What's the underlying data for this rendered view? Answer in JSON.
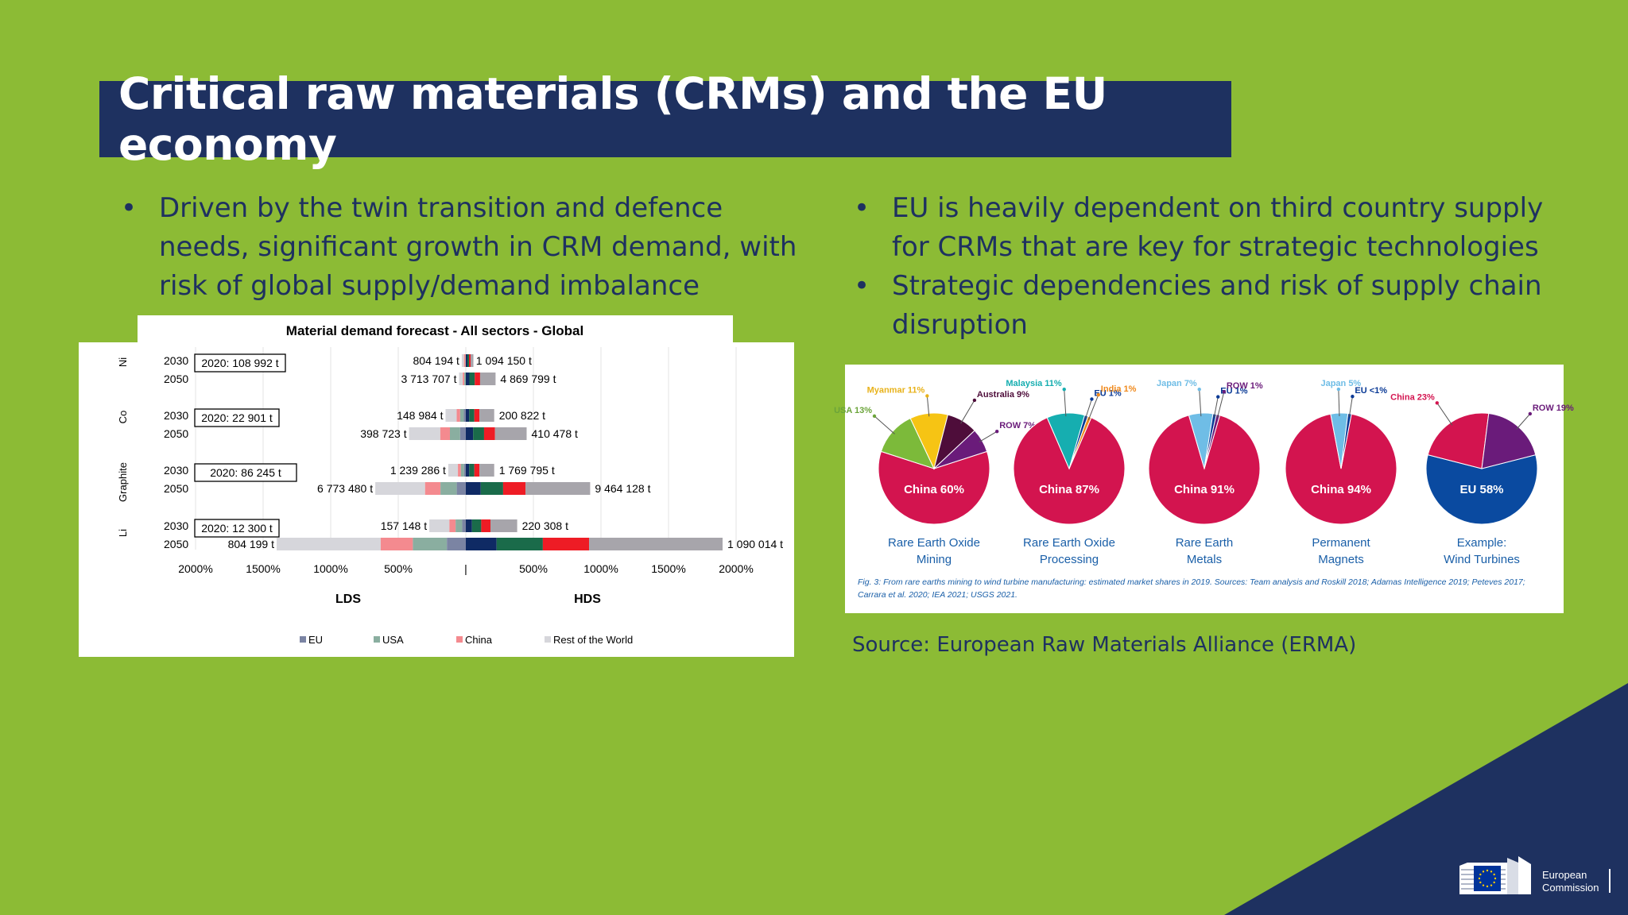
{
  "title": "Critical raw materials (CRMs) and the EU economy",
  "left_bullets": [
    "Driven by the twin transition and defence needs, significant growth in CRM demand, with risk of global supply/demand imbalance"
  ],
  "right_bullets": [
    "EU is heavily dependent on third country supply for CRMs that are key for strategic technologies",
    "Strategic dependencies and risk of supply chain disruption"
  ],
  "source": "Source: European Raw Materials Alliance (ERMA)",
  "logo": {
    "text_line1": "European",
    "text_line2": "Commission",
    "colors": {
      "eu_blue": "#003399",
      "eu_gold": "#ffcc00"
    }
  },
  "chart_data": [
    {
      "type": "bar",
      "title": "Material demand forecast - All sectors - Global",
      "xlabel_left": "LDS",
      "xlabel_right": "HDS",
      "x_ticks": [
        "2000%",
        "1500%",
        "1000%",
        "500%",
        "|",
        "500%",
        "1000%",
        "1500%",
        "2000%"
      ],
      "x_range": [
        -2000,
        2000
      ],
      "legend": [
        "EU",
        "USA",
        "China",
        "Rest of the World"
      ],
      "legend_placement": "bottom",
      "materials": [
        {
          "name": "Ni",
          "baseline": "2020:  108 992 t",
          "rows": [
            {
              "year": "2030",
              "lds_label": "804 194 t",
              "hds_label": "1 094 150 t",
              "lds": -30,
              "hds": 40
            },
            {
              "year": "2050",
              "lds_label": "3 713 707 t",
              "hds_label": "4 869 799 t",
              "lds": -50,
              "hds": 220
            }
          ]
        },
        {
          "name": "Co",
          "baseline": "2020:  22 901 t",
          "rows": [
            {
              "year": "2030",
              "lds_label": "148 984 t",
              "hds_label": "200 822 t",
              "lds": -150,
              "hds": 210
            },
            {
              "year": "2050",
              "lds_label": "398 723 t",
              "hds_label": "410 478 t",
              "lds": -420,
              "hds": 450
            }
          ]
        },
        {
          "name": "Graphite",
          "baseline": "2020:  86 245 t",
          "rows": [
            {
              "year": "2030",
              "lds_label": "1 239 286 t",
              "hds_label": "1 769 795 t",
              "lds": -130,
              "hds": 210
            },
            {
              "year": "2050",
              "lds_label": "6 773 480 t",
              "hds_label": "9 464 128 t",
              "lds": -670,
              "hds": 920
            }
          ]
        },
        {
          "name": "Li",
          "baseline": "2020:  12 300 t",
          "rows": [
            {
              "year": "2030",
              "lds_label": "157 148 t",
              "hds_label": "220 308 t",
              "lds": -270,
              "hds": 380
            },
            {
              "year": "2050",
              "lds_label": "804 199 t",
              "hds_label": "1 090 014 t",
              "lds": -1400,
              "hds": 1900
            }
          ]
        }
      ],
      "colors": {
        "EU": "#0f2a64",
        "USA": "#1a6b4a",
        "China": "#ee1c25",
        "ROW": "#a7a5ab",
        "EU_light": "#7b84a3",
        "USA_light": "#8aaea0",
        "China_light": "#f48a8f",
        "ROW_light": "#d6d6db"
      }
    },
    {
      "type": "pie",
      "caption": "Fig. 3: From rare earths mining to wind turbine manufacturing: estimated market shares in 2019. Sources: Team analysis and Roskill 2018; Adamas Intelligence 2019; Peteves 2017; Carrara et al. 2020; IEA 2021; USGS 2021.",
      "pies": [
        {
          "label": "Rare Earth Oxide Mining",
          "label_lines": [
            "Rare Earth Oxide",
            "Mining"
          ],
          "main": "China 60%",
          "slices": [
            {
              "name": "China 60%",
              "value": 60,
              "color": "#d3144f"
            },
            {
              "name": "USA 13%",
              "value": 13,
              "color": "#7cba3a"
            },
            {
              "name": "Myanmar 11%",
              "value": 11,
              "color": "#f6c414"
            },
            {
              "name": "Australia 9%",
              "value": 9,
              "color": "#4e0d3a"
            },
            {
              "name": "ROW 7%",
              "value": 7,
              "color": "#6a1b7a"
            }
          ]
        },
        {
          "label": "Rare Earth Oxide Processing",
          "label_lines": [
            "Rare Earth Oxide",
            "Processing"
          ],
          "main": "China 87%",
          "slices": [
            {
              "name": "China 87%",
              "value": 87,
              "color": "#d3144f"
            },
            {
              "name": "Malaysia 11%",
              "value": 11,
              "color": "#16aeb0"
            },
            {
              "name": "EU 1%",
              "value": 1,
              "color": "#0a3a96"
            },
            {
              "name": "India 1%",
              "value": 1,
              "color": "#f08a1d"
            }
          ]
        },
        {
          "label": "Rare Earth Metals",
          "label_lines": [
            "Rare Earth",
            "Metals"
          ],
          "main": "China 91%",
          "slices": [
            {
              "name": "China 91%",
              "value": 91,
              "color": "#d3144f"
            },
            {
              "name": "Japan 7%",
              "value": 7,
              "color": "#6fbde6"
            },
            {
              "name": "EU 1%",
              "value": 1,
              "color": "#0a3a96"
            },
            {
              "name": "ROW 1%",
              "value": 1,
              "color": "#6a1b7a"
            }
          ]
        },
        {
          "label": "Permanent Magnets",
          "label_lines": [
            "Permanent",
            "Magnets"
          ],
          "main": "China 94%",
          "slices": [
            {
              "name": "China 94%",
              "value": 94,
              "color": "#d3144f"
            },
            {
              "name": "Japan 5%",
              "value": 5,
              "color": "#6fbde6"
            },
            {
              "name": "EU <1%",
              "value": 1,
              "color": "#0a3a96"
            }
          ]
        },
        {
          "label": "Example: Wind Turbines",
          "label_lines": [
            "Example:",
            "Wind Turbines"
          ],
          "main": "EU 58%",
          "slices": [
            {
              "name": "EU 58%",
              "value": 58,
              "color": "#0a4aa0"
            },
            {
              "name": "China 23%",
              "value": 23,
              "color": "#d3144f"
            },
            {
              "name": "ROW 19%",
              "value": 19,
              "color": "#6a1b7a"
            }
          ]
        }
      ]
    }
  ]
}
